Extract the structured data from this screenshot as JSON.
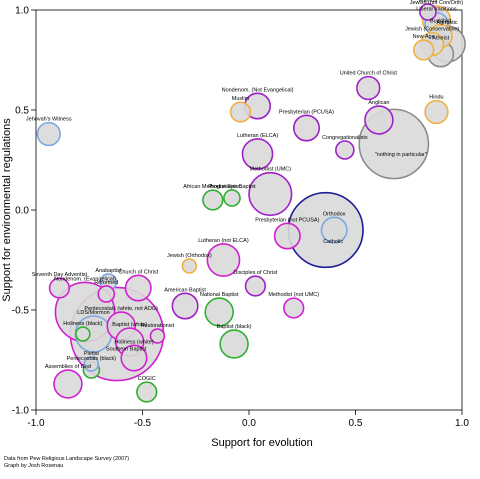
{
  "chart_data": {
    "type": "scatter",
    "title": "",
    "xlabel": "Support for evolution",
    "ylabel": "Support for environmental regulations",
    "xlim": [
      -1.0,
      1.0
    ],
    "ylim": [
      -1.0,
      1.0
    ],
    "xticks": [
      -1.0,
      -0.5,
      0.0,
      0.5,
      1.0
    ],
    "yticks": [
      -1.0,
      -0.5,
      0.0,
      0.5,
      1.0
    ],
    "xtick_labels": [
      "-1.0",
      "-0.5",
      "0.0",
      "0.5",
      "1.0"
    ],
    "ytick_labels": [
      "-1.0",
      "-0.5",
      "0.0",
      "0.5",
      "1.0"
    ],
    "grid": false,
    "legend": "none",
    "source_note": "Data from Pew Religious Landscape Survey (2007)",
    "credit": "Graph by Josh Rosenau",
    "colors": {
      "mainline": "#a020c8",
      "evangelical": "#d020d0",
      "historically_black": "#30b030",
      "catholic": "#1e1e96",
      "orthodox_christian": "#7aa8e0",
      "non_christian": "#f0b040",
      "unaffiliated": "#8c8c8c",
      "fill": "#d9d9d9"
    },
    "points": [
      {
        "label": "Jewish (not Con/Orth)",
        "x": 0.88,
        "y": 0.95,
        "size": 0.6,
        "group": "non_christian"
      },
      {
        "label": "Friends",
        "x": 0.84,
        "y": 0.99,
        "size": 0.2,
        "group": "mainline"
      },
      {
        "label": "Liberal traditions",
        "x": 0.88,
        "y": 0.93,
        "size": 0.4,
        "group": "orthodox_christian"
      },
      {
        "label": "Buddhist",
        "x": 0.9,
        "y": 0.87,
        "size": 0.4,
        "group": "non_christian"
      },
      {
        "label": "Jewish (Conservative)",
        "x": 0.86,
        "y": 0.83,
        "size": 0.4,
        "group": "non_christian"
      },
      {
        "label": "New Age",
        "x": 0.82,
        "y": 0.8,
        "size": 0.3,
        "group": "non_christian"
      },
      {
        "label": "Agnostic",
        "x": 0.93,
        "y": 0.83,
        "size": 1.0,
        "group": "unaffiliated"
      },
      {
        "label": "Atheist",
        "x": 0.9,
        "y": 0.78,
        "size": 0.5,
        "group": "unaffiliated"
      },
      {
        "label": "United Church of Christ",
        "x": 0.56,
        "y": 0.61,
        "size": 0.4,
        "group": "mainline"
      },
      {
        "label": "Hindu",
        "x": 0.88,
        "y": 0.49,
        "size": 0.4,
        "group": "non_christian"
      },
      {
        "label": "Anglican",
        "x": 0.61,
        "y": 0.45,
        "size": 0.6,
        "group": "mainline"
      },
      {
        "label": "Nondenom. (Not Evangelical)",
        "x": 0.04,
        "y": 0.52,
        "size": 0.5,
        "group": "mainline"
      },
      {
        "label": "Muslim",
        "x": -0.04,
        "y": 0.49,
        "size": 0.3,
        "group": "non_christian"
      },
      {
        "label": "Presbyterian (PCUSA)",
        "x": 0.27,
        "y": 0.41,
        "size": 0.5,
        "group": "mainline"
      },
      {
        "label": "Jehovah's Witness",
        "x": -0.94,
        "y": 0.38,
        "size": 0.4,
        "group": "orthodox_christian"
      },
      {
        "label": "Congregationalists",
        "x": 0.45,
        "y": 0.3,
        "size": 0.25,
        "group": "mainline"
      },
      {
        "label": "\"nothing in particular\"",
        "x": 0.68,
        "y": 0.33,
        "size": 3.7,
        "group": "unaffiliated"
      },
      {
        "label": "Lutheran (ELCA)",
        "x": 0.04,
        "y": 0.28,
        "size": 0.7,
        "group": "mainline"
      },
      {
        "label": "Methodist (UMC)",
        "x": 0.1,
        "y": 0.08,
        "size": 1.4,
        "group": "mainline"
      },
      {
        "label": "Catholic",
        "x": 0.36,
        "y": -0.1,
        "size": 4.3,
        "group": "catholic"
      },
      {
        "label": "Orthodox",
        "x": 0.4,
        "y": -0.1,
        "size": 0.5,
        "group": "orthodox_christian"
      },
      {
        "label": "Progressive Baptist",
        "x": -0.08,
        "y": 0.06,
        "size": 0.2,
        "group": "historically_black"
      },
      {
        "label": "African Methodist Episc.",
        "x": -0.17,
        "y": 0.05,
        "size": 0.3,
        "group": "historically_black"
      },
      {
        "label": "Presbyterian (not PCUSA)",
        "x": 0.18,
        "y": -0.13,
        "size": 0.5,
        "group": "evangelical"
      },
      {
        "label": "Lutheran (not ELCA)",
        "x": -0.12,
        "y": -0.25,
        "size": 0.8,
        "group": "evangelical"
      },
      {
        "label": "Jewish (Orthodox)",
        "x": -0.28,
        "y": -0.28,
        "size": 0.15,
        "group": "non_christian"
      },
      {
        "label": "Disciples of Christ",
        "x": 0.03,
        "y": -0.38,
        "size": 0.3,
        "group": "mainline"
      },
      {
        "label": "Anabaptist",
        "x": -0.66,
        "y": -0.36,
        "size": 0.2,
        "group": "orthodox_christian"
      },
      {
        "label": "Church of Christ",
        "x": -0.52,
        "y": -0.39,
        "size": 0.5,
        "group": "evangelical"
      },
      {
        "label": "Seventh Day Adventist",
        "x": -0.89,
        "y": -0.39,
        "size": 0.3,
        "group": "evangelical"
      },
      {
        "label": "Reformed",
        "x": -0.67,
        "y": -0.42,
        "size": 0.2,
        "group": "evangelical"
      },
      {
        "label": "American Baptist",
        "x": -0.3,
        "y": -0.48,
        "size": 0.5,
        "group": "mainline"
      },
      {
        "label": "National Baptist",
        "x": -0.14,
        "y": -0.51,
        "size": 0.6,
        "group": "historically_black"
      },
      {
        "label": "Methodist (not UMC)",
        "x": 0.21,
        "y": -0.49,
        "size": 0.3,
        "group": "evangelical"
      },
      {
        "label": "Nondenom. (Evangelical)",
        "x": -0.77,
        "y": -0.51,
        "size": 2.7,
        "group": "evangelical"
      },
      {
        "label": "Southern Baptist",
        "x": -0.62,
        "y": -0.62,
        "size": 6.7,
        "group": "evangelical"
      },
      {
        "label": "Pentecostals (white, not AOG)",
        "x": -0.6,
        "y": -0.58,
        "size": 0.6,
        "group": "evangelical"
      },
      {
        "label": "Baptist (black)",
        "x": -0.07,
        "y": -0.67,
        "size": 0.6,
        "group": "historically_black"
      },
      {
        "label": "Restorationist",
        "x": -0.43,
        "y": -0.63,
        "size": 0.15,
        "group": "evangelical"
      },
      {
        "label": "Holiness (black)",
        "x": -0.78,
        "y": -0.62,
        "size": 0.15,
        "group": "historically_black"
      },
      {
        "label": "LDS/Mormon",
        "x": -0.73,
        "y": -0.62,
        "size": 1.0,
        "group": "orthodox_christian"
      },
      {
        "label": "Baptist (white)",
        "x": -0.56,
        "y": -0.66,
        "size": 0.6,
        "group": "evangelical"
      },
      {
        "label": "Holiness (white)",
        "x": -0.54,
        "y": -0.74,
        "size": 0.5,
        "group": "evangelical"
      },
      {
        "label": "Pietist",
        "x": -0.74,
        "y": -0.77,
        "size": 0.15,
        "group": "orthodox_christian"
      },
      {
        "label": "Pentecostals (black)",
        "x": -0.74,
        "y": -0.8,
        "size": 0.2,
        "group": "historically_black"
      },
      {
        "label": "Assemblies of God",
        "x": -0.85,
        "y": -0.87,
        "size": 0.6,
        "group": "evangelical"
      },
      {
        "label": "COGIC",
        "x": -0.48,
        "y": -0.91,
        "size": 0.3,
        "group": "historically_black"
      }
    ]
  }
}
